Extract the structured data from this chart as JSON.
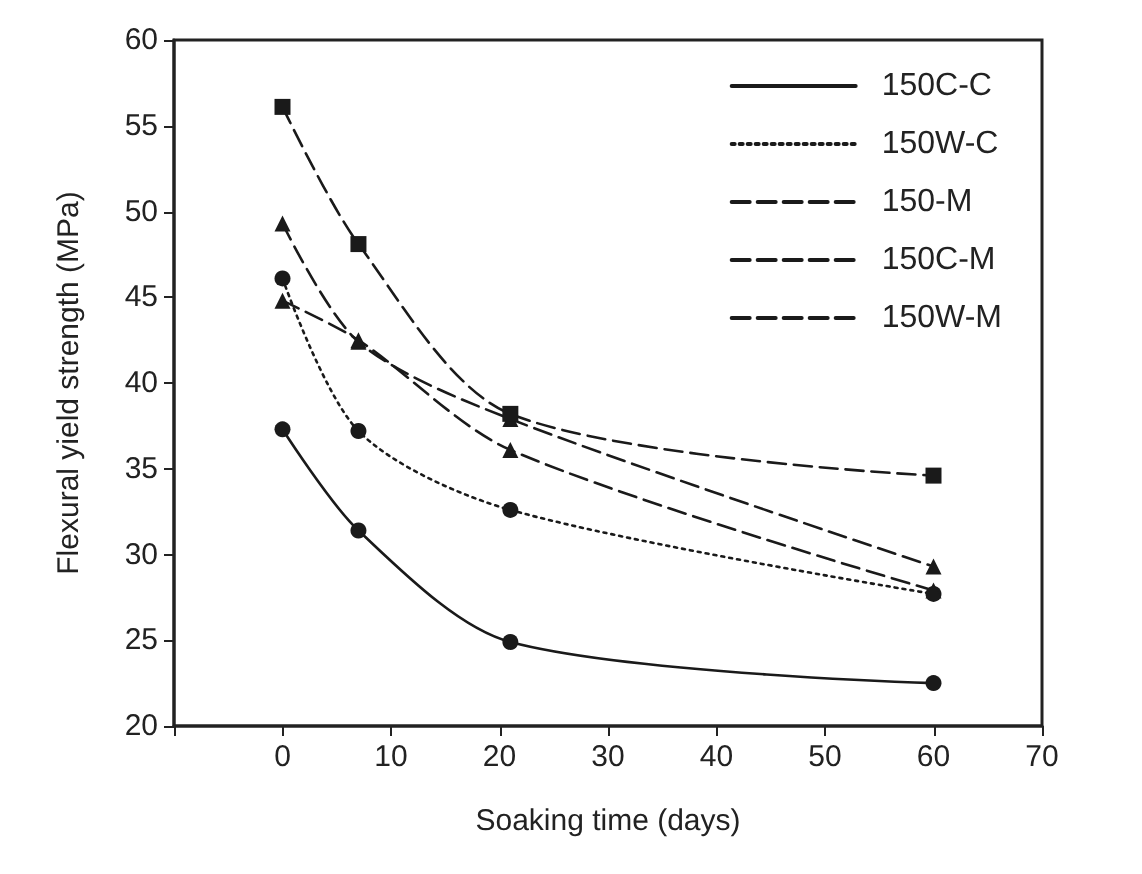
{
  "chart_data": {
    "type": "line",
    "xlabel": "Soaking time (days)",
    "ylabel": "Flexural yield strength (MPa)",
    "x": [
      0,
      7,
      21,
      60
    ],
    "xlim": [
      -10,
      70
    ],
    "xticks": [
      {
        "value": -10,
        "label": null
      },
      0,
      10,
      20,
      30,
      40,
      50,
      60,
      70
    ],
    "ylim": [
      20,
      60
    ],
    "yticks": [
      20,
      25,
      30,
      35,
      40,
      45,
      50,
      55,
      60
    ],
    "grid": false,
    "legend": "top right",
    "series": [
      {
        "name": "150C-C",
        "color": "#1a1a1a",
        "marker": "circle",
        "line_style": "solid",
        "values": [
          37.3,
          31.4,
          24.9,
          22.5
        ]
      },
      {
        "name": "150W-C",
        "color": "#1a1a1a",
        "marker": "circle",
        "line_style": "dotted",
        "values": [
          46.1,
          37.2,
          32.6,
          27.7
        ]
      },
      {
        "name": "150-M",
        "color": "#1a1a1a",
        "marker": "triangle",
        "line_style": "dashed",
        "values": [
          44.8,
          42.5,
          36.1,
          27.9
        ]
      },
      {
        "name": "150C-M",
        "color": "#1a1a1a",
        "marker": "triangle",
        "line_style": "dashed",
        "values": [
          49.3,
          42.4,
          37.9,
          29.3
        ]
      },
      {
        "name": "150W-M",
        "color": "#1a1a1a",
        "marker": "square",
        "line_style": "dashed",
        "values": [
          56.1,
          48.1,
          38.2,
          34.6
        ]
      }
    ]
  }
}
